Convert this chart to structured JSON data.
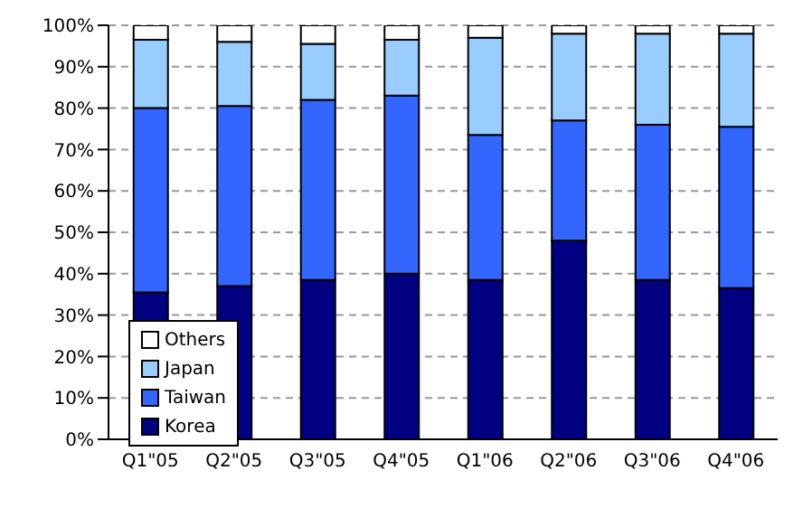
{
  "chart_data": {
    "type": "bar",
    "stacked": true,
    "categories": [
      "Q1\"05",
      "Q2\"05",
      "Q3\"05",
      "Q4\"05",
      "Q1\"06",
      "Q2\"06",
      "Q3\"06",
      "Q4\"06"
    ],
    "series": [
      {
        "name": "Korea",
        "color": "#000080",
        "values": [
          35.5,
          37,
          38.5,
          40,
          38.5,
          48,
          38.5,
          36.5
        ]
      },
      {
        "name": "Taiwan",
        "color": "#3366ff",
        "values": [
          44.5,
          43.5,
          43.5,
          43,
          35,
          29,
          37.5,
          39
        ]
      },
      {
        "name": "Japan",
        "color": "#99ccff",
        "values": [
          16.5,
          15.5,
          13.5,
          13.5,
          23.5,
          21,
          22,
          22.5
        ]
      },
      {
        "name": "Others",
        "color": "#ffffff",
        "values": [
          3.5,
          4,
          4.5,
          3.5,
          3,
          2,
          2,
          2
        ]
      }
    ],
    "ylim": [
      0,
      100
    ],
    "yticks": [
      {
        "value": 0,
        "label": "0%"
      },
      {
        "value": 10,
        "label": "10%"
      },
      {
        "value": 20,
        "label": "20%"
      },
      {
        "value": 30,
        "label": "30%"
      },
      {
        "value": 40,
        "label": "40%"
      },
      {
        "value": 50,
        "label": "50%"
      },
      {
        "value": 60,
        "label": "60%"
      },
      {
        "value": 70,
        "label": "70%"
      },
      {
        "value": 80,
        "label": "80%"
      },
      {
        "value": 90,
        "label": "90%"
      },
      {
        "value": 100,
        "label": "100%"
      }
    ],
    "grid": "y",
    "legend": "bottom left"
  }
}
